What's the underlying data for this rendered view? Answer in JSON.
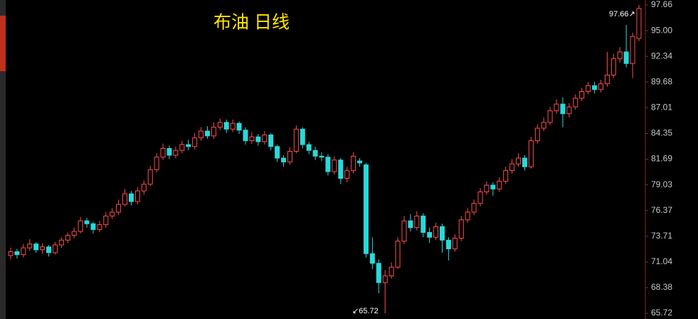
{
  "chart_data": {
    "type": "candlestick",
    "title": "布油 日线",
    "annotations": [
      "97.66↗",
      "↙65.72"
    ],
    "up_color": "#ff4d4d",
    "down_color": "#28d9d9",
    "axis_color": "#8a2a2a",
    "ylim": [
      65.13,
      98.18
    ],
    "yticks": [
      97.66,
      {
        "value": 95.0,
        "label": "95.00"
      },
      92.34,
      89.68,
      87.01,
      84.35,
      81.69,
      79.03,
      76.37,
      73.71,
      71.04,
      68.38,
      65.72
    ],
    "open": [
      71.7,
      72.1,
      71.8,
      72.5,
      72.9,
      72.3,
      72.6,
      72.0,
      72.8,
      73.3,
      73.8,
      74.2,
      75.3,
      75.0,
      74.4,
      74.9,
      75.8,
      76.2,
      77.0,
      78.1,
      77.3,
      78.4,
      79.1,
      80.6,
      81.9,
      82.8,
      82.1,
      82.6,
      83.2,
      83.0,
      83.9,
      84.6,
      84.1,
      85.0,
      85.5,
      84.8,
      85.4,
      84.7,
      83.6,
      84.0,
      83.5,
      84.2,
      83.0,
      81.8,
      81.4,
      82.5,
      84.8,
      83.2,
      82.6,
      82.0,
      81.9,
      80.4,
      81.6,
      79.7,
      80.5,
      81.5,
      81.1,
      71.9,
      70.9,
      68.9,
      69.6,
      70.5,
      73.2,
      75.3,
      74.6,
      75.8,
      74.1,
      73.6,
      74.7,
      73.3,
      72.4,
      73.5,
      75.4,
      76.2,
      77.1,
      78.3,
      79.0,
      78.6,
      79.4,
      80.5,
      81.2,
      81.8,
      80.9,
      83.6,
      84.9,
      85.5,
      86.7,
      87.4,
      86.4,
      87.1,
      88.0,
      88.7,
      89.3,
      88.9,
      89.5,
      90.4,
      92.1,
      92.8,
      91.6,
      94.2
    ],
    "high": [
      72.5,
      72.4,
      72.9,
      73.4,
      73.1,
      73.0,
      72.8,
      73.1,
      73.6,
      74.1,
      74.6,
      75.7,
      75.6,
      75.2,
      75.3,
      76.2,
      76.6,
      77.5,
      78.6,
      78.4,
      78.8,
      79.5,
      81.0,
      82.3,
      83.3,
      83.1,
      83.0,
      83.6,
      83.7,
      84.4,
      85.0,
      85.1,
      85.5,
      85.9,
      85.8,
      85.8,
      85.6,
      85.0,
      84.5,
      84.3,
      84.6,
      84.4,
      83.2,
      82.1,
      82.9,
      85.2,
      85.0,
      83.5,
      83.0,
      82.4,
      82.2,
      82.0,
      81.8,
      80.9,
      82.4,
      81.8,
      81.3,
      73.6,
      71.3,
      70.2,
      71.0,
      73.6,
      75.8,
      76.0,
      76.3,
      76.1,
      74.6,
      75.1,
      75.0,
      73.6,
      73.9,
      75.8,
      76.6,
      77.5,
      78.7,
      79.4,
      79.3,
      79.8,
      80.9,
      81.7,
      82.3,
      82.1,
      84.0,
      85.3,
      86.0,
      87.1,
      87.9,
      88.1,
      87.5,
      88.4,
      89.1,
      89.7,
      89.7,
      89.9,
      92.8,
      92.6,
      93.3,
      95.6,
      94.8,
      97.66
    ],
    "low": [
      71.3,
      71.4,
      71.5,
      72.2,
      72.0,
      71.9,
      71.6,
      71.8,
      72.5,
      73.0,
      73.5,
      74.0,
      74.6,
      74.0,
      74.1,
      74.6,
      75.5,
      75.9,
      76.8,
      76.9,
      77.0,
      78.0,
      78.9,
      80.3,
      81.6,
      81.7,
      81.8,
      82.3,
      82.6,
      82.7,
      83.6,
      83.8,
      83.8,
      84.7,
      84.4,
      84.5,
      84.3,
      83.2,
      83.3,
      83.1,
      83.2,
      82.6,
      81.4,
      80.9,
      81.1,
      82.3,
      82.8,
      82.2,
      81.6,
      81.5,
      80.0,
      80.1,
      79.1,
      79.3,
      80.2,
      80.9,
      71.5,
      70.3,
      67.8,
      65.72,
      69.3,
      70.3,
      72.9,
      74.2,
      74.3,
      73.6,
      73.0,
      73.3,
      72.0,
      71.2,
      72.1,
      73.2,
      75.1,
      75.9,
      76.8,
      78.0,
      77.9,
      78.3,
      79.1,
      80.2,
      80.9,
      80.5,
      80.7,
      83.3,
      84.6,
      85.2,
      86.4,
      85.0,
      86.0,
      86.8,
      87.7,
      88.4,
      88.5,
      88.6,
      89.2,
      90.1,
      91.7,
      91.2,
      90.1,
      93.9
    ],
    "close": [
      72.1,
      71.8,
      72.5,
      72.9,
      72.3,
      72.6,
      72.0,
      72.8,
      73.3,
      73.8,
      74.2,
      75.3,
      75.0,
      74.4,
      74.9,
      75.8,
      76.2,
      77.0,
      78.1,
      77.3,
      78.4,
      79.1,
      80.6,
      81.9,
      82.8,
      82.1,
      82.6,
      83.2,
      83.0,
      83.9,
      84.6,
      84.1,
      85.0,
      85.5,
      84.8,
      85.4,
      84.7,
      83.6,
      84.0,
      83.5,
      84.2,
      83.0,
      81.8,
      81.4,
      82.5,
      84.8,
      83.2,
      82.6,
      82.0,
      81.9,
      80.4,
      81.6,
      79.7,
      80.5,
      82.0,
      81.3,
      71.9,
      70.9,
      68.9,
      69.6,
      70.5,
      73.2,
      75.3,
      74.6,
      75.8,
      74.1,
      73.6,
      74.7,
      73.3,
      72.4,
      73.5,
      75.4,
      76.2,
      77.1,
      78.3,
      79.0,
      78.6,
      79.4,
      80.5,
      81.2,
      81.8,
      80.9,
      83.6,
      84.9,
      85.5,
      86.7,
      87.4,
      86.4,
      87.1,
      88.0,
      88.7,
      89.3,
      88.9,
      89.5,
      90.4,
      92.1,
      92.8,
      91.6,
      94.4,
      97.3
    ]
  }
}
